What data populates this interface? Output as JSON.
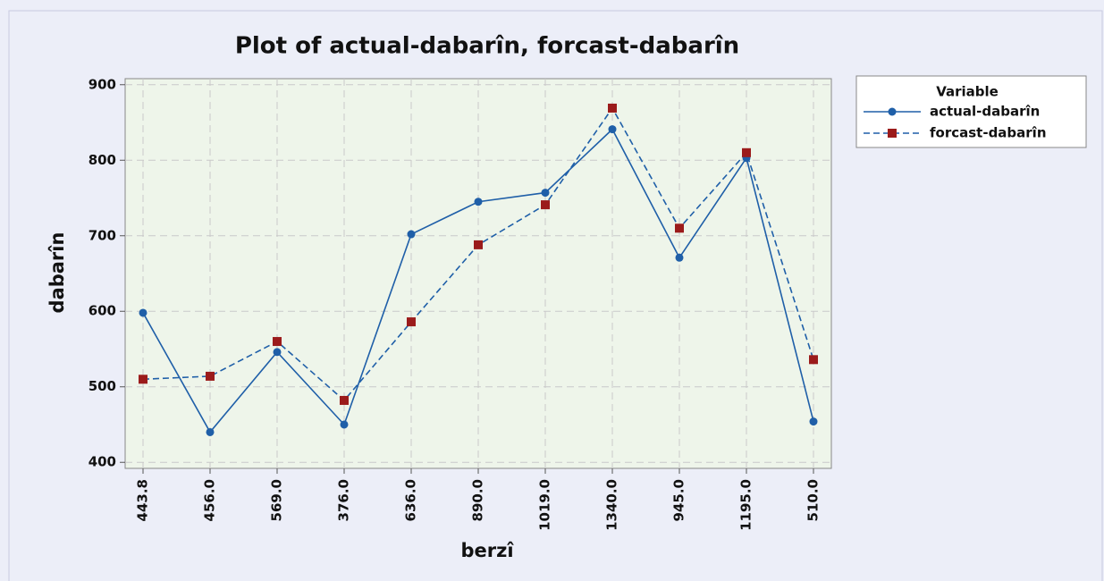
{
  "chart_data": {
    "type": "line",
    "title": "Plot of actual-dabarîn, forcast-dabarîn",
    "x_label": "berzî",
    "y_label": "dabarîn",
    "legend_title": "Variable",
    "legend_position": "right",
    "grid": true,
    "categories": [
      "443.8",
      "456.0",
      "569.0",
      "376.0",
      "636.0",
      "890.0",
      "1019.0",
      "1340.0",
      "945.0",
      "1195.0",
      "510.0"
    ],
    "series": [
      {
        "name": "actual-dabarîn",
        "color": "#1f5fa8",
        "marker_color": "#1f5fa8",
        "marker": "circle",
        "line_style": "solid",
        "values": [
          598,
          440,
          546,
          450,
          702,
          745,
          757,
          841,
          671,
          803,
          454
        ]
      },
      {
        "name": "forcast-dabarîn",
        "color": "#1f5fa8",
        "marker_color": "#9b1b1b",
        "marker": "square",
        "line_style": "dashed",
        "values": [
          510,
          514,
          560,
          482,
          586,
          688,
          741,
          869,
          710,
          810,
          536
        ]
      }
    ],
    "ylim": [
      392,
      908
    ],
    "yticks": [
      400,
      500,
      600,
      700,
      800,
      900
    ]
  }
}
